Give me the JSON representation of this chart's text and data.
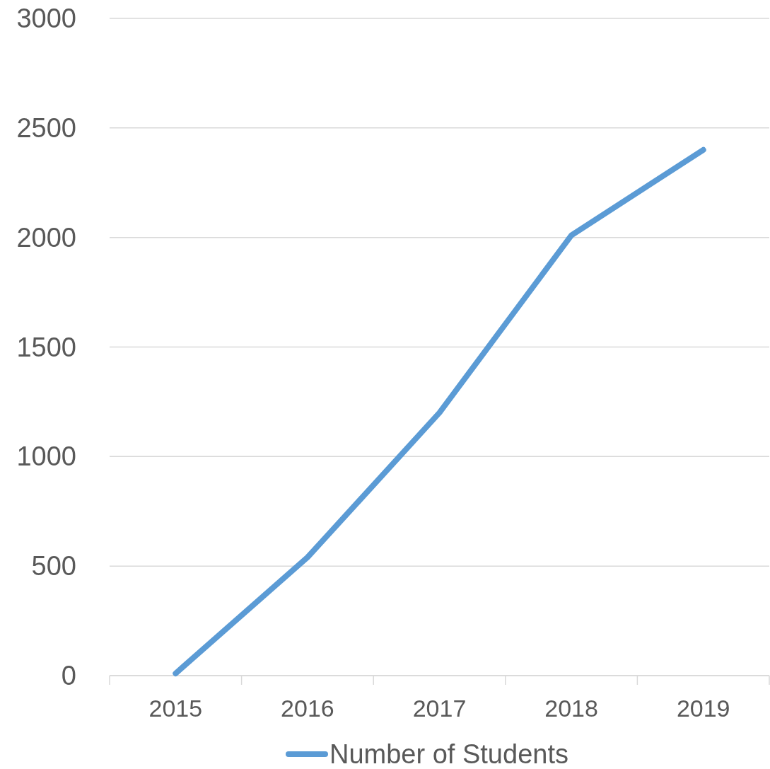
{
  "chart_data": {
    "type": "line",
    "categories": [
      "2015",
      "2016",
      "2017",
      "2018",
      "2019"
    ],
    "series": [
      {
        "name": "Number of Students",
        "color": "#5b9bd5",
        "values": [
          10,
          540,
          1200,
          2010,
          2400
        ]
      }
    ],
    "ylim": [
      0,
      3000
    ],
    "yticks": [
      0,
      500,
      1000,
      1500,
      2000,
      2500,
      3000
    ],
    "grid": "y",
    "legend": "bottom",
    "marker": "none",
    "line_style": "solid"
  }
}
